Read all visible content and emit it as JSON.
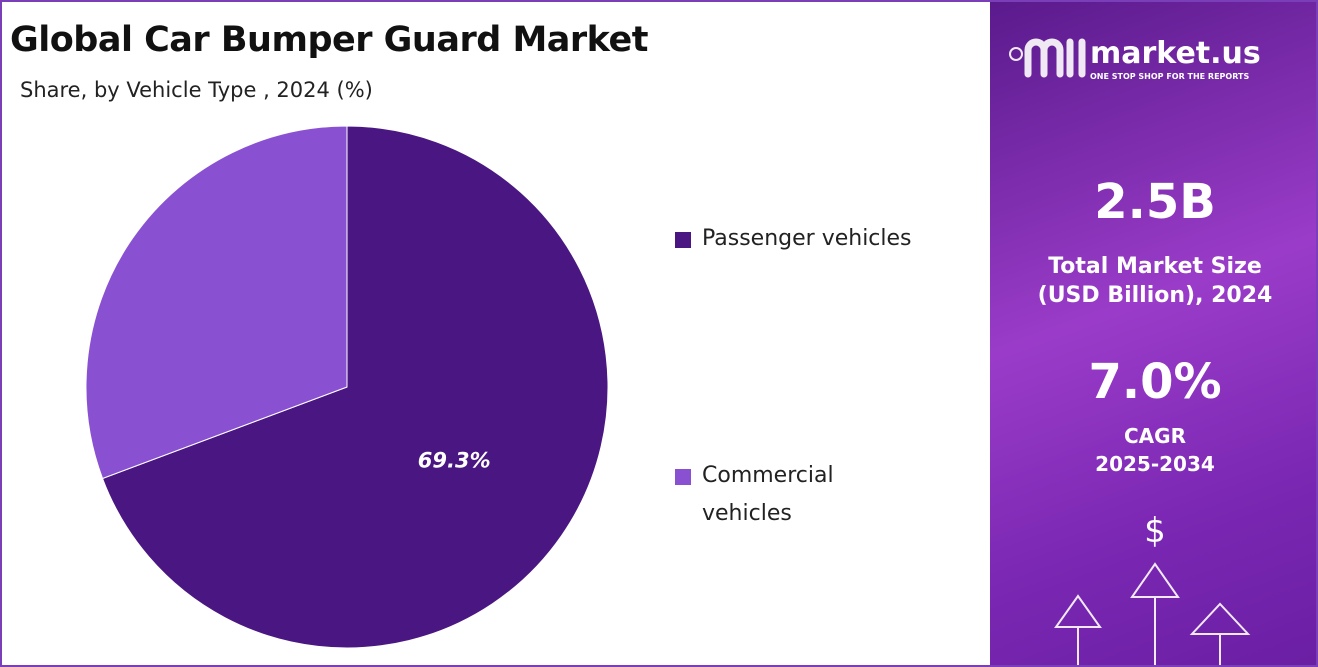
{
  "chart_data": {
    "type": "pie",
    "title": "Global Car Bumper Guard Market",
    "subtitle": "Share, by Vehicle Type , 2024 (%)",
    "categories": [
      "Passenger vehicles",
      "Commercial vehicles"
    ],
    "values": [
      69.3,
      30.7
    ],
    "value_labels": [
      "69.3%",
      null
    ],
    "colors": [
      "#4a1681",
      "#8a50d2"
    ],
    "legend": "right"
  },
  "panel": {
    "brand": "market.us",
    "tagline": "ONE STOP SHOP FOR THE REPORTS",
    "market_size": "2.5B",
    "market_size_label": "Total Market Size (USD Billion), 2024",
    "cagr": "7.0%",
    "cagr_label": "CAGR",
    "cagr_period": "2025-2034"
  }
}
